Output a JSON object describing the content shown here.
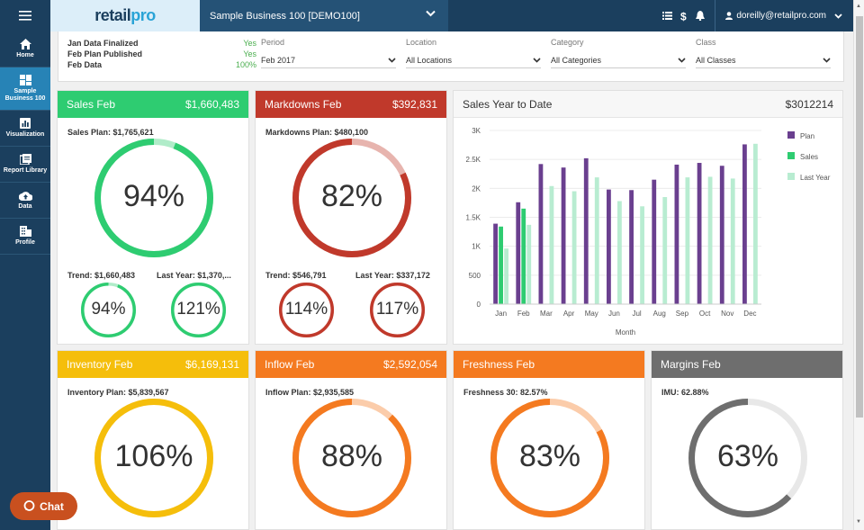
{
  "sidebar": {
    "items": [
      {
        "label": "Home"
      },
      {
        "label": "Sample Business 100"
      },
      {
        "label": "Visualization"
      },
      {
        "label": "Report Library"
      },
      {
        "label": "Data"
      },
      {
        "label": "Profile"
      }
    ]
  },
  "header": {
    "logo_main": "retail",
    "logo_pro": "pro",
    "business": "Sample Business 100 [DEMO100]",
    "user": "doreilly@retailpro.com"
  },
  "filters": {
    "flags": [
      {
        "label": "Jan Data Finalized",
        "value": "Yes"
      },
      {
        "label": "Feb Plan Published",
        "value": "Yes"
      },
      {
        "label": "Feb Data",
        "value": "100%"
      }
    ],
    "period": {
      "label": "Period",
      "value": "Feb 2017"
    },
    "location": {
      "label": "Location",
      "value": "All Locations"
    },
    "category": {
      "label": "Category",
      "value": "All Categories"
    },
    "class": {
      "label": "Class",
      "value": "All Classes"
    }
  },
  "colors": {
    "green": "#2ecc71",
    "red": "#c0392b",
    "yellow": "#f5be0b",
    "orange": "#f47a20",
    "gray": "#6e6e6e"
  },
  "cards": {
    "sales": {
      "title": "Sales Feb",
      "value": "$1,660,483",
      "plan": "Sales Plan: $1,765,621",
      "pct": "94%",
      "pct_num": 94,
      "trend": "Trend: $1,660,483",
      "trend_pct": "94%",
      "trend_num": 94,
      "ly": "Last Year: $1,370,...",
      "ly_pct": "121%",
      "ly_num": 121
    },
    "markdowns": {
      "title": "Markdowns Feb",
      "value": "$392,831",
      "plan": "Markdowns Plan: $480,100",
      "pct": "82%",
      "pct_num": 82,
      "trend": "Trend: $546,791",
      "trend_pct": "114%",
      "trend_num": 114,
      "ly": "Last Year: $337,172",
      "ly_pct": "117%",
      "ly_num": 117
    },
    "inventory": {
      "title": "Inventory Feb",
      "value": "$6,169,131",
      "plan": "Inventory Plan: $5,839,567",
      "pct": "106%",
      "pct_num": 106
    },
    "inflow": {
      "title": "Inflow Feb",
      "value": "$2,592,054",
      "plan": "Inflow Plan: $2,935,585",
      "pct": "88%",
      "pct_num": 88
    },
    "freshness": {
      "title": "Freshness Feb",
      "plan": "Freshness 30: 82.57%",
      "pct": "83%",
      "pct_num": 83
    },
    "margins": {
      "title": "Margins Feb",
      "plan": "IMU: 62.88%",
      "pct": "63%",
      "pct_num": 63
    }
  },
  "ytd": {
    "title": "Sales Year to Date",
    "value": "$3012214"
  },
  "chart_data": {
    "type": "bar",
    "title": "Sales Year to Date",
    "xlabel": "Month",
    "ylabel": "",
    "ylim": [
      0,
      3000
    ],
    "yticks": [
      0,
      500,
      1000,
      1500,
      2000,
      2500,
      3000
    ],
    "ytick_labels": [
      "0",
      "500",
      "1K",
      "1.5K",
      "2K",
      "2.5K",
      "3K"
    ],
    "categories": [
      "Jan",
      "Feb",
      "Mar",
      "Apr",
      "May",
      "Jun",
      "Jul",
      "Aug",
      "Sep",
      "Oct",
      "Nov",
      "Dec"
    ],
    "series": [
      {
        "name": "Plan",
        "color": "#6a3f8f",
        "values": [
          1390,
          1760,
          2420,
          2360,
          2520,
          1980,
          1970,
          2150,
          2410,
          2440,
          2390,
          2760
        ]
      },
      {
        "name": "Sales",
        "color": "#2ecc71",
        "values": [
          1340,
          1650,
          null,
          null,
          null,
          null,
          null,
          null,
          null,
          null,
          null,
          null
        ]
      },
      {
        "name": "Last Year",
        "color": "#b8ecd1",
        "values": [
          960,
          1370,
          2040,
          1950,
          2190,
          1780,
          1690,
          1850,
          2190,
          2200,
          2170,
          2770
        ]
      }
    ]
  },
  "chat": {
    "label": "Chat"
  }
}
